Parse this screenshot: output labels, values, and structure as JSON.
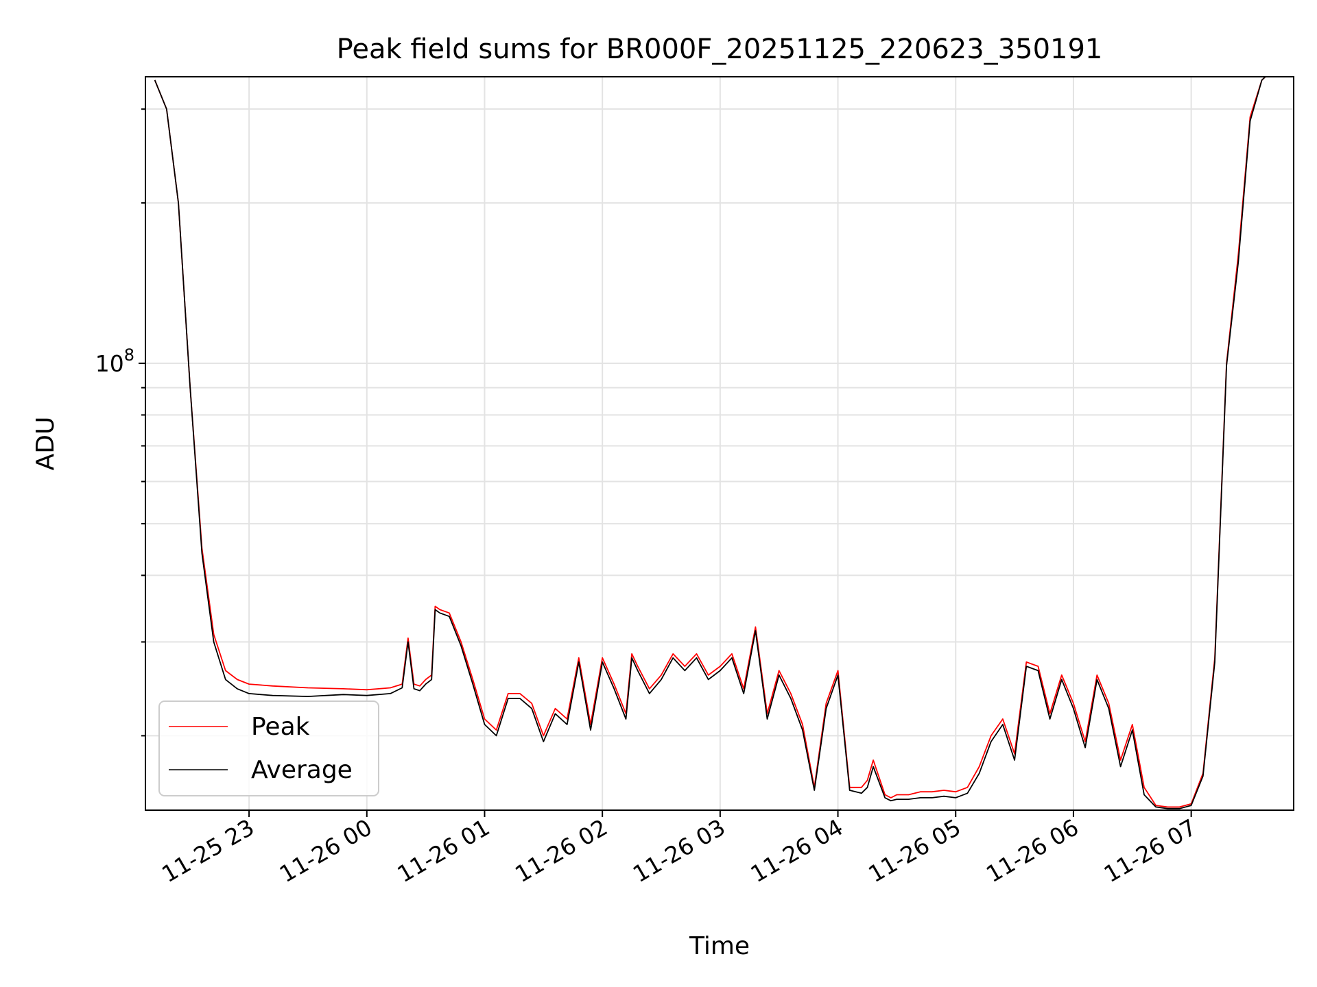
{
  "chart_data": {
    "type": "line",
    "title": "Peak field sums for BR000F_20251125_220623_350191",
    "xlabel": "Time",
    "ylabel": "ADU",
    "y_scale": "log",
    "ylim": [
      14500000,
      345000000
    ],
    "xlim_hours_from_2025-11-25_22:00": [
      0.12,
      9.87
    ],
    "x_tick_labels": [
      {
        "label": "11-25 23",
        "hour": 1
      },
      {
        "label": "11-26 00",
        "hour": 2
      },
      {
        "label": "11-26 01",
        "hour": 3
      },
      {
        "label": "11-26 02",
        "hour": 4
      },
      {
        "label": "11-26 03",
        "hour": 5
      },
      {
        "label": "11-26 04",
        "hour": 6
      },
      {
        "label": "11-26 05",
        "hour": 7
      },
      {
        "label": "11-26 06",
        "hour": 8
      },
      {
        "label": "11-26 07",
        "hour": 9
      }
    ],
    "y_major_ticks": [
      {
        "value": 100000000,
        "base": "10",
        "exp": "8"
      }
    ],
    "y_minor_ticks": [
      20000000,
      30000000,
      40000000,
      50000000,
      60000000,
      70000000,
      80000000,
      90000000,
      200000000,
      300000000
    ],
    "grid": true,
    "legend_position": "lower-left",
    "series": [
      {
        "name": "Peak",
        "color": "#ff0000",
        "x_hours": [
          0.2,
          0.3,
          0.4,
          0.5,
          0.6,
          0.7,
          0.8,
          0.9,
          1.0,
          1.2,
          1.5,
          1.8,
          2.0,
          2.2,
          2.3,
          2.35,
          2.4,
          2.45,
          2.5,
          2.55,
          2.58,
          2.62,
          2.7,
          2.8,
          2.9,
          3.0,
          3.1,
          3.2,
          3.3,
          3.4,
          3.5,
          3.6,
          3.7,
          3.8,
          3.9,
          4.0,
          4.1,
          4.2,
          4.25,
          4.3,
          4.4,
          4.5,
          4.6,
          4.7,
          4.8,
          4.9,
          5.0,
          5.1,
          5.2,
          5.3,
          5.4,
          5.5,
          5.6,
          5.7,
          5.8,
          5.9,
          6.0,
          6.1,
          6.2,
          6.25,
          6.3,
          6.4,
          6.45,
          6.5,
          6.6,
          6.7,
          6.8,
          6.9,
          7.0,
          7.1,
          7.2,
          7.3,
          7.4,
          7.5,
          7.6,
          7.7,
          7.8,
          7.9,
          8.0,
          8.1,
          8.2,
          8.3,
          8.4,
          8.5,
          8.6,
          8.7,
          8.8,
          8.9,
          9.0,
          9.1,
          9.2,
          9.3,
          9.4,
          9.5,
          9.6,
          9.63,
          9.7,
          9.8,
          9.87
        ],
        "values": [
          340000000,
          300000000,
          200000000,
          90000000,
          45000000,
          31000000,
          26500000,
          25500000,
          25000000,
          24800000,
          24600000,
          24500000,
          24400000,
          24600000,
          25000000,
          30500000,
          25000000,
          24800000,
          25500000,
          26000000,
          35000000,
          34500000,
          34000000,
          30000000,
          25500000,
          21500000,
          20500000,
          24000000,
          24000000,
          23000000,
          20000000,
          22500000,
          21500000,
          28000000,
          21000000,
          28000000,
          25000000,
          22000000,
          28500000,
          27000000,
          24500000,
          26000000,
          28500000,
          27000000,
          28500000,
          26000000,
          27000000,
          28500000,
          24500000,
          32000000,
          22000000,
          26500000,
          24000000,
          21000000,
          16000000,
          23000000,
          26500000,
          16000000,
          16000000,
          16500000,
          18000000,
          15500000,
          15300000,
          15500000,
          15500000,
          15700000,
          15700000,
          15800000,
          15700000,
          16000000,
          17500000,
          20000000,
          21500000,
          18500000,
          27500000,
          27000000,
          22000000,
          26000000,
          23000000,
          19500000,
          26000000,
          23000000,
          18000000,
          21000000,
          16000000,
          14800000,
          14700000,
          14700000,
          14900000,
          17000000,
          28000000,
          100000000,
          160000000,
          290000000,
          340000000,
          345000000,
          345000000,
          345000000,
          345000000
        ]
      },
      {
        "name": "Average",
        "color": "#000000",
        "x_hours": [
          0.2,
          0.3,
          0.4,
          0.5,
          0.6,
          0.7,
          0.8,
          0.9,
          1.0,
          1.2,
          1.5,
          1.8,
          2.0,
          2.2,
          2.3,
          2.35,
          2.4,
          2.45,
          2.5,
          2.55,
          2.58,
          2.62,
          2.7,
          2.8,
          2.9,
          3.0,
          3.1,
          3.2,
          3.3,
          3.4,
          3.5,
          3.6,
          3.7,
          3.8,
          3.9,
          4.0,
          4.1,
          4.2,
          4.25,
          4.3,
          4.4,
          4.5,
          4.6,
          4.7,
          4.8,
          4.9,
          5.0,
          5.1,
          5.2,
          5.3,
          5.4,
          5.5,
          5.6,
          5.7,
          5.8,
          5.9,
          6.0,
          6.1,
          6.2,
          6.25,
          6.3,
          6.4,
          6.45,
          6.5,
          6.6,
          6.7,
          6.8,
          6.9,
          7.0,
          7.1,
          7.2,
          7.3,
          7.4,
          7.5,
          7.6,
          7.7,
          7.8,
          7.9,
          8.0,
          8.1,
          8.2,
          8.3,
          8.4,
          8.5,
          8.6,
          8.7,
          8.8,
          8.9,
          9.0,
          9.1,
          9.2,
          9.3,
          9.4,
          9.5,
          9.6,
          9.63,
          9.7,
          9.8,
          9.87
        ],
        "values": [
          340000000,
          300000000,
          200000000,
          90000000,
          44000000,
          30000000,
          25500000,
          24500000,
          24000000,
          23800000,
          23700000,
          23900000,
          23800000,
          24000000,
          24600000,
          30000000,
          24500000,
          24300000,
          25000000,
          25500000,
          34500000,
          34000000,
          33500000,
          29500000,
          25000000,
          21000000,
          20000000,
          23500000,
          23500000,
          22500000,
          19500000,
          22000000,
          21000000,
          27500000,
          20500000,
          27500000,
          24500000,
          21500000,
          28000000,
          26500000,
          24000000,
          25500000,
          28000000,
          26500000,
          28000000,
          25500000,
          26500000,
          28000000,
          24000000,
          31500000,
          21500000,
          26000000,
          23500000,
          20500000,
          15800000,
          22500000,
          26000000,
          15800000,
          15600000,
          16000000,
          17500000,
          15300000,
          15100000,
          15200000,
          15200000,
          15300000,
          15300000,
          15400000,
          15300000,
          15600000,
          17000000,
          19500000,
          21000000,
          18000000,
          27000000,
          26500000,
          21500000,
          25500000,
          22500000,
          19000000,
          25500000,
          22500000,
          17500000,
          20500000,
          15500000,
          14700000,
          14600000,
          14600000,
          14800000,
          16800000,
          27500000,
          99000000,
          155000000,
          285000000,
          340000000,
          345000000,
          345000000,
          345000000,
          345000000
        ]
      }
    ]
  }
}
